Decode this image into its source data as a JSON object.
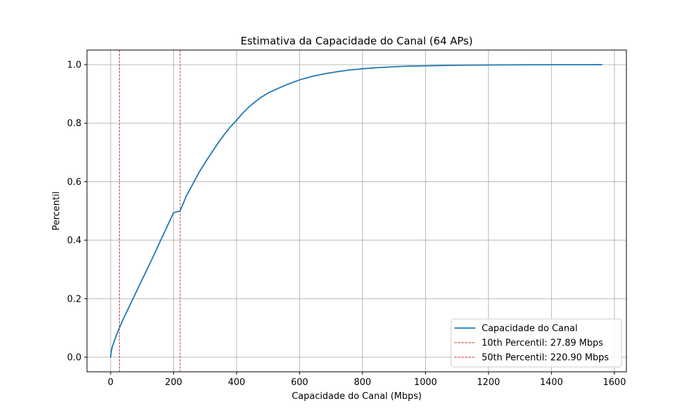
{
  "chart_data": {
    "type": "line",
    "title": "Estimativa da Capacidade do Canal (64 APs)",
    "xlabel": "Capacidade do Canal (Mbps)",
    "ylabel": "Percentil",
    "xlim": [
      -75,
      1638
    ],
    "ylim": [
      -0.05,
      1.05
    ],
    "xticks": [
      0,
      200,
      400,
      600,
      800,
      1000,
      1200,
      1400,
      1600
    ],
    "yticks": [
      0.0,
      0.2,
      0.4,
      0.6,
      0.8,
      1.0
    ],
    "xtick_labels": [
      "0",
      "200",
      "400",
      "600",
      "800",
      "1000",
      "1200",
      "1400",
      "1600"
    ],
    "ytick_labels": [
      "0.0",
      "0.2",
      "0.4",
      "0.6",
      "0.8",
      "1.0"
    ],
    "grid": true,
    "legend_position": "bottom-right",
    "series": [
      {
        "name": "Capacidade do Canal",
        "color": "#1f77b4",
        "style": "solid",
        "x": [
          0,
          2,
          5,
          10,
          15,
          20,
          27.89,
          40,
          60,
          80,
          100,
          120,
          140,
          160,
          180,
          200,
          220.9,
          240,
          260,
          280,
          300,
          320,
          340,
          360,
          380,
          400,
          420,
          440,
          460,
          480,
          500,
          530,
          560,
          600,
          640,
          680,
          720,
          760,
          800,
          850,
          900,
          950,
          1000,
          1100,
          1200,
          1300,
          1400,
          1500,
          1560
        ],
        "y": [
          0.0,
          0.02,
          0.035,
          0.05,
          0.065,
          0.08,
          0.1,
          0.13,
          0.175,
          0.22,
          0.265,
          0.31,
          0.355,
          0.402,
          0.448,
          0.494,
          0.5,
          0.55,
          0.59,
          0.63,
          0.665,
          0.698,
          0.73,
          0.76,
          0.787,
          0.81,
          0.835,
          0.856,
          0.874,
          0.89,
          0.903,
          0.918,
          0.932,
          0.948,
          0.96,
          0.969,
          0.976,
          0.982,
          0.986,
          0.99,
          0.993,
          0.995,
          0.996,
          0.998,
          0.999,
          0.9995,
          0.9998,
          0.9999,
          1.0
        ]
      }
    ],
    "reference_lines": [
      {
        "name": "10th Percentil: 27.89 Mbps",
        "orientation": "vertical",
        "x": 27.89,
        "color": "#d62728",
        "style": "dashed"
      },
      {
        "name": "50th Percentil: 220.90 Mbps",
        "orientation": "vertical",
        "x": 220.9,
        "color": "#d62728",
        "style": "dashed"
      }
    ]
  }
}
